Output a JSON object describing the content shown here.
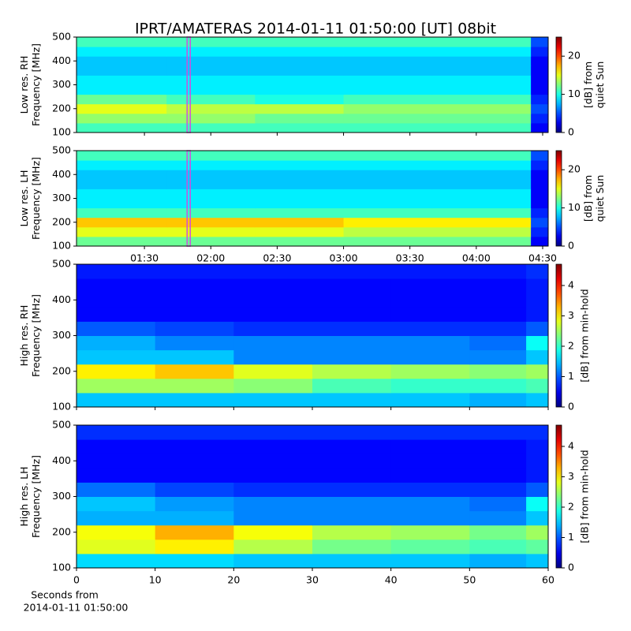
{
  "chart_data": [
    {
      "type": "heatmap",
      "title": "IPRT/AMATERAS 2014-01-11 01:50:00 [UT]   08bit",
      "ylabel": [
        "Low res. RH",
        "Frequency [MHz]"
      ],
      "zlabel": [
        "[dB] from",
        "quiet Sun"
      ],
      "xlim": [
        59.3,
        272.5
      ],
      "ylim": [
        100,
        500
      ],
      "yticks": [
        100,
        200,
        300,
        400,
        500
      ],
      "zlim": [
        0,
        25
      ],
      "zticks": [
        0,
        10,
        20
      ],
      "colormap": "jet",
      "vline": 110,
      "vline_color": "#d050e0",
      "x_bins": [
        59.3,
        100,
        140,
        180,
        220,
        264.7,
        272.5
      ],
      "y_bins": [
        100,
        140,
        180,
        220,
        260,
        300,
        340,
        380,
        420,
        460,
        500
      ],
      "z": [
        [
          11,
          11,
          11,
          11,
          11,
          3
        ],
        [
          13,
          13,
          12,
          12,
          12,
          4
        ],
        [
          15,
          14,
          14,
          13,
          13,
          5
        ],
        [
          12,
          11,
          10,
          11,
          11,
          4
        ],
        [
          9,
          9,
          9,
          9,
          9,
          3
        ],
        [
          9,
          9,
          9,
          9,
          9,
          3
        ],
        [
          8,
          8,
          8,
          8,
          8,
          3
        ],
        [
          8,
          8,
          8,
          8,
          8,
          3
        ],
        [
          9,
          9,
          9,
          9,
          9,
          4
        ],
        [
          11,
          11,
          11,
          11,
          11,
          5
        ]
      ]
    },
    {
      "type": "heatmap",
      "ylabel": [
        "Low res. LH",
        "Frequency [MHz]"
      ],
      "zlabel": [
        "[dB] from",
        "quiet Sun"
      ],
      "xlim": [
        59.3,
        272.5
      ],
      "ylim": [
        100,
        500
      ],
      "yticks": [
        100,
        200,
        300,
        400,
        500
      ],
      "xticks": [
        {
          "value": 90,
          "label": "01:30"
        },
        {
          "value": 120,
          "label": "02:00"
        },
        {
          "value": 150,
          "label": "02:30"
        },
        {
          "value": 180,
          "label": "03:00"
        },
        {
          "value": 210,
          "label": "03:30"
        },
        {
          "value": 240,
          "label": "04:00"
        },
        {
          "value": 270,
          "label": "04:30"
        }
      ],
      "zlim": [
        0,
        25
      ],
      "zticks": [
        0,
        10,
        20
      ],
      "colormap": "jet",
      "vline": 110,
      "vline_color": "#d050e0",
      "x_bins": [
        59.3,
        100,
        140,
        180,
        220,
        264.7,
        272.5
      ],
      "y_bins": [
        100,
        140,
        180,
        220,
        260,
        300,
        340,
        380,
        420,
        460,
        500
      ],
      "z": [
        [
          12,
          12,
          12,
          12,
          12,
          3
        ],
        [
          15,
          15,
          15,
          14,
          14,
          4
        ],
        [
          17,
          17,
          17,
          16,
          16,
          5
        ],
        [
          11,
          11,
          11,
          11,
          11,
          4
        ],
        [
          9,
          9,
          9,
          9,
          9,
          3
        ],
        [
          9,
          9,
          9,
          9,
          9,
          3
        ],
        [
          8,
          8,
          8,
          8,
          8,
          3
        ],
        [
          8,
          8,
          8,
          8,
          8,
          3
        ],
        [
          9,
          9,
          9,
          9,
          9,
          4
        ],
        [
          11,
          11,
          11,
          11,
          11,
          5
        ]
      ]
    },
    {
      "type": "heatmap",
      "ylabel": [
        "High res. RH",
        "Frequency [MHz]"
      ],
      "zlabel": [
        "[dB] from min-hold"
      ],
      "xlim": [
        0,
        60
      ],
      "ylim": [
        100,
        500
      ],
      "yticks": [
        100,
        200,
        300,
        400,
        500
      ],
      "zlim": [
        0,
        4.7
      ],
      "zticks": [
        0,
        1,
        2,
        3,
        4
      ],
      "colormap": "jet",
      "x_bins": [
        0,
        10,
        20,
        30,
        40,
        50,
        57.2,
        60
      ],
      "y_bins": [
        100,
        140,
        180,
        220,
        260,
        300,
        340,
        380,
        420,
        460,
        500
      ],
      "z": [
        [
          1.5,
          1.5,
          1.5,
          1.5,
          1.5,
          1.4,
          1.5
        ],
        [
          2.5,
          2.5,
          2.4,
          2.1,
          2,
          2,
          2.1
        ],
        [
          3,
          3.2,
          2.8,
          2.6,
          2.5,
          2.4,
          2.5
        ],
        [
          1.5,
          1.5,
          1.2,
          1.2,
          1.2,
          1.2,
          1.5
        ],
        [
          1.4,
          1.2,
          1.2,
          1.2,
          1.2,
          1.1,
          1.8
        ],
        [
          1,
          0.9,
          0.8,
          0.8,
          0.8,
          0.8,
          1
        ],
        [
          0.6,
          0.6,
          0.6,
          0.6,
          0.6,
          0.6,
          0.7
        ],
        [
          0.6,
          0.6,
          0.6,
          0.6,
          0.6,
          0.6,
          0.7
        ],
        [
          0.6,
          0.6,
          0.6,
          0.6,
          0.6,
          0.6,
          0.7
        ],
        [
          0.7,
          0.7,
          0.7,
          0.7,
          0.7,
          0.7,
          0.8
        ]
      ]
    },
    {
      "type": "heatmap",
      "ylabel": [
        "High res. LH",
        "Frequency [MHz]"
      ],
      "zlabel": [
        "[dB] from min-hold"
      ],
      "xlabel": [
        "Seconds from",
        "2014-01-11 01:50:00"
      ],
      "xlim": [
        0,
        60
      ],
      "ylim": [
        100,
        500
      ],
      "yticks": [
        100,
        200,
        300,
        400,
        500
      ],
      "xticks": [
        0,
        10,
        20,
        30,
        40,
        50,
        60
      ],
      "zlim": [
        0,
        4.7
      ],
      "zticks": [
        0,
        1,
        2,
        3,
        4
      ],
      "colormap": "jet",
      "x_bins": [
        0,
        10,
        20,
        30,
        40,
        50,
        57.2,
        60
      ],
      "y_bins": [
        100,
        140,
        180,
        220,
        260,
        300,
        340,
        380,
        420,
        460,
        500
      ],
      "z": [
        [
          1.6,
          1.6,
          1.5,
          1.5,
          1.5,
          1.4,
          1.5
        ],
        [
          2.8,
          3,
          2.6,
          2.3,
          2.2,
          2.1,
          2.2
        ],
        [
          2.9,
          3.3,
          2.9,
          2.6,
          2.5,
          2.3,
          2.5
        ],
        [
          1.4,
          1.4,
          1.2,
          1.2,
          1.2,
          1.2,
          1.5
        ],
        [
          1.5,
          1.3,
          1.2,
          1.2,
          1.2,
          1.1,
          1.8
        ],
        [
          1.1,
          0.9,
          0.8,
          0.8,
          0.8,
          0.8,
          1
        ],
        [
          0.6,
          0.6,
          0.6,
          0.6,
          0.6,
          0.6,
          0.7
        ],
        [
          0.6,
          0.6,
          0.6,
          0.6,
          0.6,
          0.6,
          0.7
        ],
        [
          0.6,
          0.6,
          0.6,
          0.6,
          0.6,
          0.6,
          0.7
        ],
        [
          0.8,
          0.8,
          0.8,
          0.8,
          0.8,
          0.8,
          0.8
        ]
      ]
    }
  ]
}
